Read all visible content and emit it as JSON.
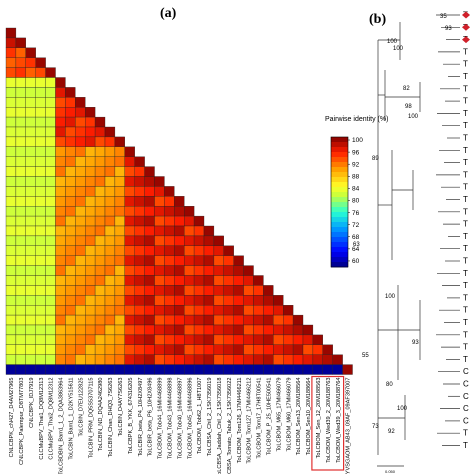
{
  "panels": {
    "a": "(a)",
    "b": "(b)"
  },
  "chart_data": [
    {
      "type": "heatmap",
      "panel": "(a)",
      "description_shape": "lower-triangular pairwise identity matrix",
      "legend": {
        "title": "Pairwise identity (%)",
        "ticks": [
          100,
          96,
          92,
          88,
          84,
          80,
          76,
          72,
          68,
          64,
          60
        ],
        "range": [
          58,
          101
        ]
      },
      "sequences": [
        "CNLCBPK_cN427_D4AM27965",
        "CNLCBPK_Palempur_D8TM77803",
        "CNLCBPK_IDJ7919",
        "CLCMuBPV_Thai1_DQ8M12313",
        "CLCMuBPV_Thai2_DQ8M12312",
        "ToLCBDBIN_Bam1_1_2_DQA3863964",
        "ToLCBIN_Bam1_1_D2KY515611",
        "ToLCBIN_D7EU122825",
        "ToLCBIN_PRM_DQ5S53707115",
        "ToLCBIN_ND_DQ4A2462980",
        "ToLCBIN_Chan_DHQ3_7S6263",
        "ToLCBIN_D4AY7S6263",
        "ToLCBPK_B_YKK_674316205",
        "ToLCBIR_beta_P4_10H2X8497",
        "ToLCBIR_beta_P6_10H2X8496",
        "ToLCBOM_Tob44_16MI4468899",
        "ToLCBOM_Tob43_16MI4468898",
        "ToLCBOM_Tob40_16MI4468897",
        "ToLCBOM_Tob45_16MI4468896",
        "ToLCBOM_Tob62_1_H8T1007",
        "ToLCBSA_Chil_2_1SK7356019",
        "ToLCBSA_Jaddah_Chil_2_1SK7356018",
        "ToLCBSA_Tomato_Tabuk_2_1SK7356022",
        "ToLCBOM_Tom126_17MI4466211",
        "ToLCBOM_Tom127_17MI4466212",
        "ToLCBOM_Tom17_17H8T00541",
        "ToLCBOM_P_25_10HE500541",
        "ToLCBOM_M65_17MI466079",
        "ToLCBOM_M60_17MI466079",
        "ToLCBOM_Sen13_20M188564",
        "ToLCBOM_Sen10_20M188664",
        "ToLCBOM_Sen_12_20M188563",
        "ToLCBOM_Wed39_2_20M188763",
        "ToLCBOM_Wed39_3_20M188764",
        "AYVSGAOM_AB43_09AF_09AF397007"
      ],
      "highlighted": [
        "ToLCBOM_Sen_12_20M188563",
        "ToLCBOM_Wed39_2_20M188763",
        "ToLCBOM_Wed39_3_20M188764"
      ],
      "colors": {
        "high": "#7f0000",
        "mid": "#ffff30",
        "low": "#00007f",
        "highlight_box": "#e03030"
      }
    },
    {
      "type": "table",
      "panel": "(b)",
      "description_shape": "phylogenetic tree (partially visible)",
      "bootstrap_values": [
        "35",
        "93",
        "100",
        "100",
        "82",
        "98",
        "100",
        "89",
        "63",
        "55",
        "100",
        "93",
        "80",
        "100",
        "92",
        "73"
      ],
      "leaf_prefix": "T",
      "leaf_prefix_lower": "C",
      "scale_bar": "0.050"
    }
  ]
}
